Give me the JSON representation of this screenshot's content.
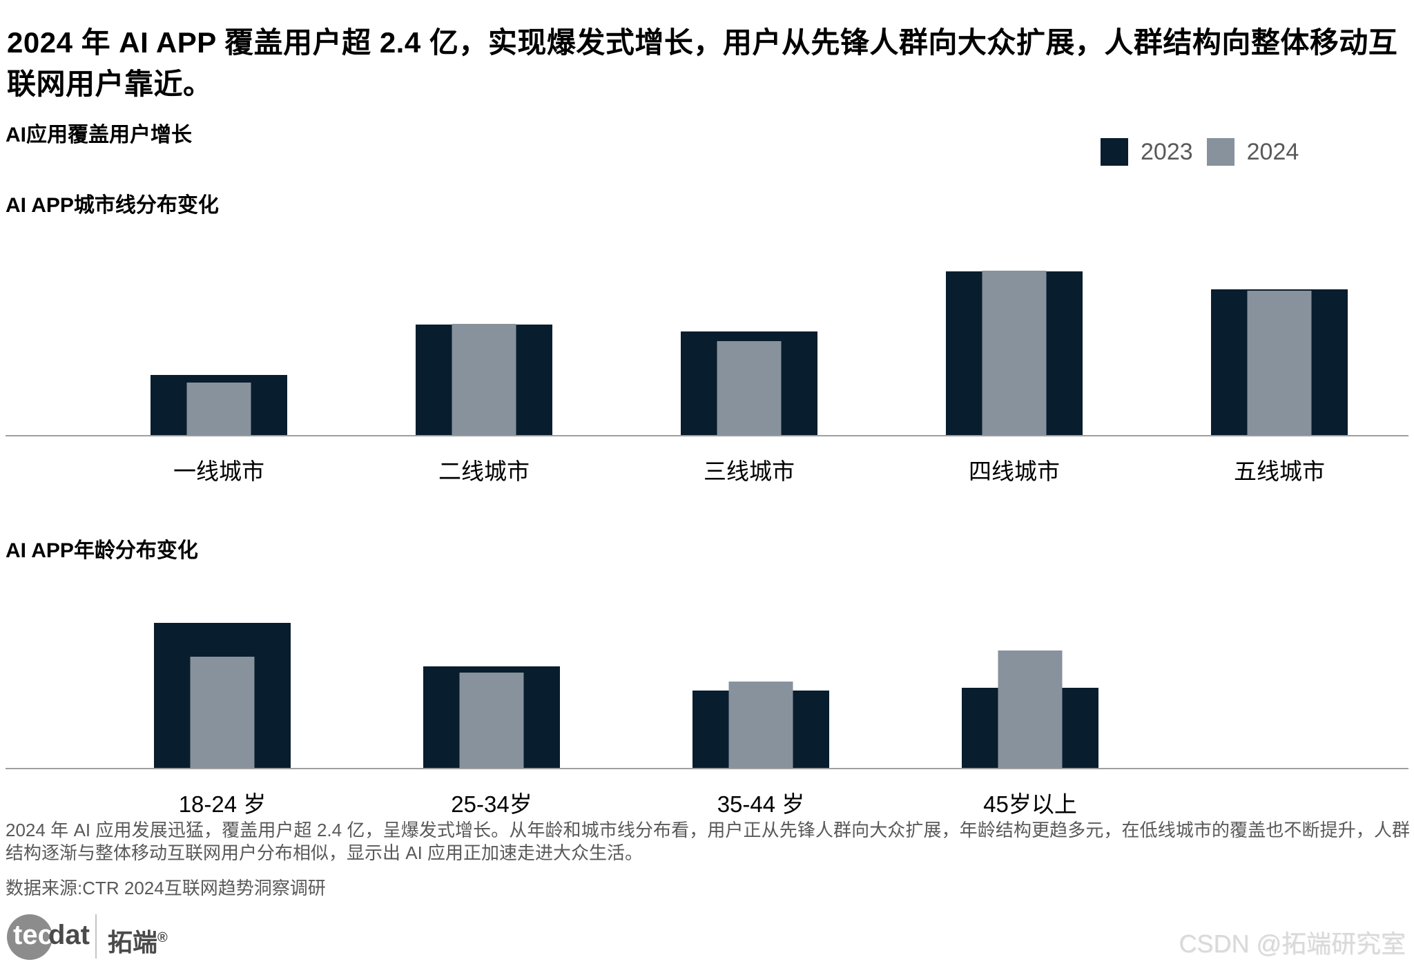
{
  "page": {
    "title": "2024 年 AI APP 覆盖用户超 2.4 亿，实现爆发式增长，用户从先锋人群向大众扩展，人群结构向整体移动互联网用户靠近。",
    "growth_section_title": "AI应用覆盖用户增长",
    "footer_paragraph": "2024 年 AI 应用发展迅猛，覆盖用户超 2.4 亿，呈爆发式增长。从年龄和城市线分布看，用户正从先锋人群向大众扩展，年龄结构更趋多元，在低线城市的覆盖也不断提升，人群结构逐渐与整体移动互联网用户分布相似，显示出 AI 应用正加速走进大众生活。",
    "source": "数据来源:CTR 2024互联网趋势洞察调研",
    "watermark": "CSDN @拓端研究室"
  },
  "legend": {
    "position": "top-right",
    "items": [
      {
        "label": "2023",
        "color": "#081D2D"
      },
      {
        "label": "2024",
        "color": "#87929C"
      }
    ]
  },
  "logo": {
    "brand_latin_left": "tec",
    "brand_latin_right": "dat",
    "brand_cjk": "拓端",
    "registered_mark": "®"
  },
  "colors": {
    "series_2023": "#081D2D",
    "series_2024": "#87929C",
    "axis_line": "#9e9e9e",
    "body_text": "#595959",
    "watermark": "#d9d9d9"
  },
  "chart_data": [
    {
      "type": "bar",
      "title": "AI APP城市线分布变化",
      "categories": [
        "一线城市",
        "二线城市",
        "三线城市",
        "四线城市",
        "五线城市"
      ],
      "series": [
        {
          "name": "2023",
          "color": "#081D2D",
          "values": [
            9.0,
            16.5,
            15.5,
            24.5,
            21.8
          ]
        },
        {
          "name": "2024",
          "color": "#87929C",
          "values": [
            7.8,
            16.6,
            14.0,
            24.6,
            21.6
          ]
        }
      ],
      "ylim": [
        0,
        26
      ],
      "grid": false,
      "value_labels_shown": false,
      "note": "no numeric axis shown; values estimated from bar heights (relative share)",
      "style": "wide 2023 bar behind, narrow 2024 bar overlaid in front, bottom-aligned"
    },
    {
      "type": "bar",
      "title": "AI APP年龄分布变化",
      "categories": [
        "18-24 岁",
        "25-34岁",
        "35-44 岁",
        "45岁以上"
      ],
      "series": [
        {
          "name": "2023",
          "color": "#081D2D",
          "values": [
            23.5,
            16.5,
            12.5,
            13.0
          ]
        },
        {
          "name": "2024",
          "color": "#87929C",
          "values": [
            18.0,
            15.5,
            14.0,
            19.0
          ]
        }
      ],
      "ylim": [
        0,
        26
      ],
      "grid": false,
      "value_labels_shown": false,
      "note": "no numeric axis shown; values estimated from bar heights (relative share)",
      "style": "wide 2023 bar behind, narrow 2024 bar overlaid in front, bottom-aligned"
    }
  ]
}
